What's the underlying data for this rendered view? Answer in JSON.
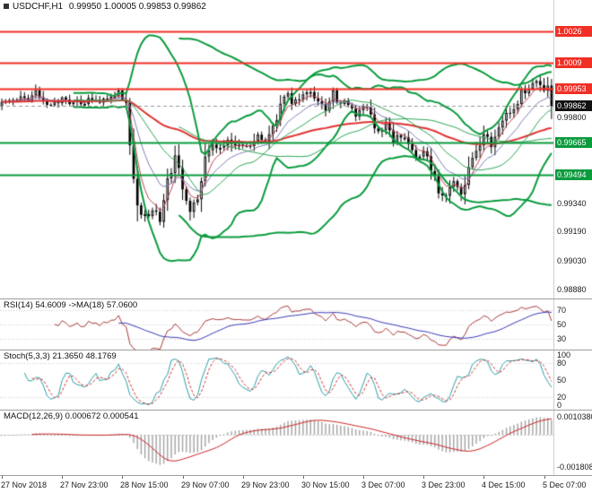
{
  "header": {
    "symbol": "USDCHF,H1",
    "ohlc": "0.99950 1.00005 0.99853 0.99862"
  },
  "colors": {
    "resistance": "#f02f25",
    "support": "#0a9b3d",
    "band": "#0a9b3d",
    "band_mid": "#2aa352",
    "slow_ma": "#e03131",
    "fast_ma": "#c04455",
    "med_ma": "#7d7db8",
    "candle": "#000000",
    "red_badge": "#f02f25",
    "green_badge": "#0a9b3d",
    "black_badge": "#111111",
    "current_line": "#999999",
    "level_dotted": "#c8c8c8",
    "rsi_line": "#a83a3a",
    "rsi_ma": "#3636b8",
    "stoch_k": "#2b9ea8",
    "stoch_d": "#cc3333",
    "macd_hist": "#a2a2a2",
    "macd_signal": "#cc2222"
  },
  "main_chart": {
    "price_min": 0.9883,
    "price_max": 1.0043,
    "levels": [
      {
        "value": 1.0026,
        "type": "resistance"
      },
      {
        "value": 1.00095,
        "type": "resistance"
      },
      {
        "value": 0.99953,
        "type": "resistance"
      },
      {
        "value": 0.99665,
        "type": "support"
      },
      {
        "value": 0.99494,
        "type": "support"
      }
    ],
    "current_price": 0.99862,
    "axis_labels": [
      {
        "label": "1.0026",
        "value": 1.0026,
        "badge": "red"
      },
      {
        "label": "1.0009",
        "value": 1.00095,
        "badge": "red"
      },
      {
        "label": "0.99953",
        "value": 0.99953,
        "badge": "red"
      },
      {
        "label": "0.99862",
        "value": 0.99862,
        "badge": "black"
      },
      {
        "label": "0.99800",
        "value": 0.998
      },
      {
        "label": "0.99665",
        "value": 0.99665,
        "badge": "green"
      },
      {
        "label": "0.99494",
        "value": 0.99494,
        "badge": "green"
      },
      {
        "label": "0.99340",
        "value": 0.9934
      },
      {
        "label": "0.99190",
        "value": 0.9919
      },
      {
        "label": "0.99030",
        "value": 0.9903
      },
      {
        "label": "0.98880",
        "value": 0.9888
      }
    ]
  },
  "indicators": {
    "rsi": {
      "label": "RSI(14) 54.6009 ->MA(18) 57.0600",
      "period": 14,
      "ma_period": 18,
      "current": 54.6009,
      "ma_current": 57.06,
      "axis_labels": [
        70,
        50,
        30
      ],
      "level_lines": [
        70,
        50,
        30
      ],
      "range": [
        15,
        85
      ]
    },
    "stoch": {
      "label": "Stoch(5,3,3) 21.3650 48.1769",
      "k_period": 5,
      "slowing": 3,
      "d_period": 3,
      "current_k": 21.365,
      "current_d": 48.1769,
      "axis_labels": [
        100,
        80,
        50,
        20,
        0
      ],
      "level_lines": [
        80,
        20
      ],
      "range": [
        -3,
        103
      ]
    },
    "macd": {
      "label": "MACD(12,26,9) 0.000672 0.000541",
      "fast": 12,
      "slow": 26,
      "signal": 9,
      "current_macd": 0.000672,
      "current_signal": 0.000541,
      "axis_labels": [
        {
          "label": "0.0010380",
          "value": 0.001038
        },
        {
          "label": "-0.0018080",
          "value": -0.001808
        }
      ],
      "range": [
        -0.00228,
        0.00138
      ]
    }
  },
  "time_axis": {
    "labels": [
      "27 Nov 2018",
      "27 Nov 23:00",
      "28 Nov 15:00",
      "29 Nov 07:00",
      "29 Nov 23:00",
      "30 Nov 15:00",
      "3 Dec 07:00",
      "3 Dec 23:00",
      "4 Dec 15:00",
      "5 Dec 07:00"
    ],
    "tick_indices": [
      0,
      16,
      32,
      48,
      64,
      80,
      96,
      112,
      128,
      144
    ]
  },
  "chart_data": {
    "type": "candlestick",
    "symbol": "USDCHF",
    "timeframe": "H1",
    "candle_count": 147,
    "noise_seed": 20181127,
    "open_first": 0.9986,
    "last_close": 0.99862,
    "close_keyframes": [
      [
        0,
        0.9986
      ],
      [
        3,
        0.9992
      ],
      [
        6,
        0.9988
      ],
      [
        9,
        0.9994
      ],
      [
        12,
        0.9988
      ],
      [
        16,
        0.9991
      ],
      [
        20,
        0.9987
      ],
      [
        24,
        0.9992
      ],
      [
        28,
        0.9989
      ],
      [
        31,
        0.9993
      ],
      [
        33,
        0.9988
      ],
      [
        34,
        0.9966
      ],
      [
        35,
        0.9948
      ],
      [
        36,
        0.9935
      ],
      [
        38,
        0.9926
      ],
      [
        40,
        0.993
      ],
      [
        42,
        0.9924
      ],
      [
        44,
        0.9945
      ],
      [
        46,
        0.9958
      ],
      [
        48,
        0.9944
      ],
      [
        50,
        0.9932
      ],
      [
        52,
        0.9938
      ],
      [
        54,
        0.9958
      ],
      [
        56,
        0.9968
      ],
      [
        58,
        0.9962
      ],
      [
        60,
        0.997
      ],
      [
        62,
        0.9963
      ],
      [
        64,
        0.9966
      ],
      [
        66,
        0.9962
      ],
      [
        68,
        0.9972
      ],
      [
        70,
        0.9966
      ],
      [
        72,
        0.9975
      ],
      [
        74,
        0.9985
      ],
      [
        76,
        0.9992
      ],
      [
        78,
        0.9988
      ],
      [
        80,
        0.9992
      ],
      [
        82,
        0.9996
      ],
      [
        84,
        0.999
      ],
      [
        86,
        0.9986
      ],
      [
        88,
        0.9992
      ],
      [
        90,
        0.9989
      ],
      [
        92,
        0.9985
      ],
      [
        94,
        0.9982
      ],
      [
        96,
        0.9987
      ],
      [
        98,
        0.9979
      ],
      [
        100,
        0.9972
      ],
      [
        102,
        0.9976
      ],
      [
        104,
        0.9968
      ],
      [
        106,
        0.9972
      ],
      [
        108,
        0.9965
      ],
      [
        110,
        0.9958
      ],
      [
        112,
        0.9962
      ],
      [
        114,
        0.9953
      ],
      [
        116,
        0.9942
      ],
      [
        118,
        0.9937
      ],
      [
        120,
        0.9945
      ],
      [
        122,
        0.994
      ],
      [
        124,
        0.9952
      ],
      [
        126,
        0.9962
      ],
      [
        128,
        0.997
      ],
      [
        130,
        0.9966
      ],
      [
        132,
        0.9974
      ],
      [
        134,
        0.998
      ],
      [
        136,
        0.9986
      ],
      [
        138,
        0.9992
      ],
      [
        140,
        0.9996
      ],
      [
        142,
        0.9999
      ],
      [
        144,
        0.9993
      ],
      [
        145,
        0.9997
      ],
      [
        146,
        0.99862
      ]
    ],
    "overlays": {
      "bollinger": [
        {
          "period": 20,
          "dev": 2
        },
        {
          "period": 48,
          "dev": 2
        }
      ],
      "moving_averages": [
        {
          "period": 72,
          "style": "slow"
        },
        {
          "period": 5,
          "style": "fast"
        },
        {
          "period": 12,
          "style": "medium"
        }
      ]
    }
  }
}
